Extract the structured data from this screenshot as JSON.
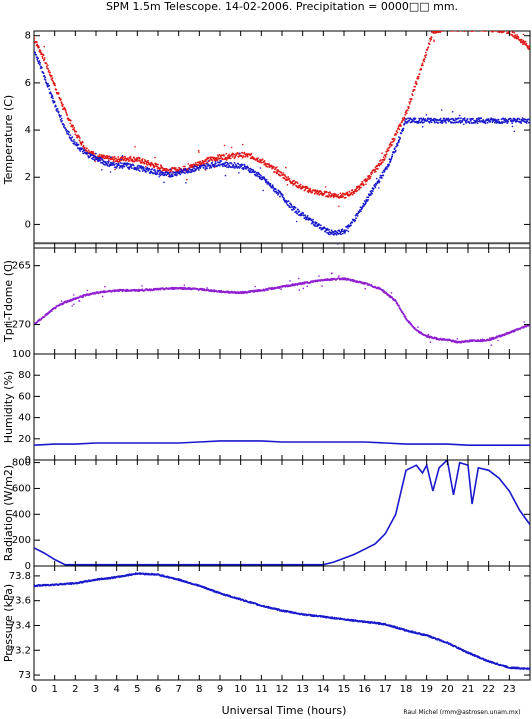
{
  "title": "SPM 1.5m Telescope. 14-02-2006. Precipitation = 0000□□ mm.",
  "xlabel": "Universal Time (hours)",
  "credit": "Raul Michel (rmm@astrosen.unam.mx)",
  "colors": {
    "blue": "#1a1acc",
    "red": "#e01818",
    "purple": "#9020d0",
    "gray": "#555555"
  },
  "chart_data": [
    {
      "type": "scatter",
      "ylabel": "Temperature (C)",
      "xlim": [
        0,
        24
      ],
      "ylim": [
        -1,
        8.2
      ],
      "yticks": [
        0,
        2,
        4,
        6,
        8
      ],
      "ytick_labels": [
        "0",
        "2",
        "4",
        "6",
        "8"
      ],
      "series": [
        {
          "color": "red",
          "points": [
            [
              0,
              7.9
            ],
            [
              0.5,
              7.0
            ],
            [
              1,
              5.9
            ],
            [
              1.5,
              4.8
            ],
            [
              2,
              3.9
            ],
            [
              2.5,
              3.2
            ],
            [
              3,
              2.9
            ],
            [
              3.5,
              2.8
            ],
            [
              4,
              2.75
            ],
            [
              4.5,
              2.8
            ],
            [
              5,
              2.75
            ],
            [
              5.5,
              2.6
            ],
            [
              6,
              2.45
            ],
            [
              6.5,
              2.3
            ],
            [
              7,
              2.3
            ],
            [
              7.5,
              2.4
            ],
            [
              8,
              2.6
            ],
            [
              8.5,
              2.75
            ],
            [
              9,
              2.85
            ],
            [
              9.5,
              2.9
            ],
            [
              10,
              2.95
            ],
            [
              10.5,
              2.9
            ],
            [
              11,
              2.7
            ],
            [
              11.5,
              2.4
            ],
            [
              12,
              2.1
            ],
            [
              12.5,
              1.8
            ],
            [
              13,
              1.55
            ],
            [
              13.5,
              1.4
            ],
            [
              14,
              1.3
            ],
            [
              14.5,
              1.25
            ],
            [
              15,
              1.2
            ],
            [
              15.5,
              1.4
            ],
            [
              16,
              1.8
            ],
            [
              16.5,
              2.3
            ],
            [
              17,
              2.9
            ],
            [
              17.5,
              3.8
            ],
            [
              18,
              4.7
            ],
            [
              18.5,
              6.0
            ],
            [
              19,
              7.3
            ],
            [
              19.3,
              8.2
            ],
            [
              20,
              8.3
            ],
            [
              21,
              8.3
            ],
            [
              22,
              8.3
            ],
            [
              23,
              8.2
            ],
            [
              24,
              7.5
            ]
          ]
        },
        {
          "color": "blue",
          "points": [
            [
              0,
              7.4
            ],
            [
              0.5,
              6.3
            ],
            [
              1,
              5.1
            ],
            [
              1.5,
              4.1
            ],
            [
              2,
              3.4
            ],
            [
              2.5,
              3.0
            ],
            [
              3,
              2.8
            ],
            [
              3.5,
              2.6
            ],
            [
              4,
              2.5
            ],
            [
              4.5,
              2.5
            ],
            [
              5,
              2.4
            ],
            [
              5.5,
              2.3
            ],
            [
              6,
              2.2
            ],
            [
              6.5,
              2.1
            ],
            [
              7,
              2.2
            ],
            [
              7.5,
              2.3
            ],
            [
              8,
              2.4
            ],
            [
              8.5,
              2.5
            ],
            [
              9,
              2.6
            ],
            [
              9.5,
              2.5
            ],
            [
              10,
              2.5
            ],
            [
              10.5,
              2.3
            ],
            [
              11,
              2.0
            ],
            [
              11.5,
              1.6
            ],
            [
              12,
              1.2
            ],
            [
              12.5,
              0.7
            ],
            [
              13,
              0.4
            ],
            [
              13.5,
              0.1
            ],
            [
              14,
              -0.2
            ],
            [
              14.5,
              -0.4
            ],
            [
              15,
              -0.3
            ],
            [
              15.5,
              0.2
            ],
            [
              16,
              0.9
            ],
            [
              16.5,
              1.6
            ],
            [
              17,
              2.3
            ],
            [
              17.5,
              3.2
            ],
            [
              18,
              4.4
            ],
            [
              19,
              4.4
            ],
            [
              20,
              4.4
            ],
            [
              21,
              4.4
            ],
            [
              22,
              4.4
            ],
            [
              23,
              4.4
            ],
            [
              24,
              4.4
            ]
          ]
        },
        {
          "color": "gray",
          "points": [
            [
              0,
              -0.8
            ],
            [
              24,
              -0.8
            ]
          ]
        }
      ]
    },
    {
      "type": "scatter",
      "ylabel": "Tpri-Tdome (C)",
      "xlim": [
        0,
        24
      ],
      "ylim": [
        -272.5,
        -263.5
      ],
      "yticks": [
        -270,
        -265
      ],
      "ytick_labels": [
        "−270",
        "−265"
      ],
      "series": [
        {
          "color": "purple",
          "points": [
            [
              0,
              -270.0
            ],
            [
              0.5,
              -269.3
            ],
            [
              1,
              -268.6
            ],
            [
              1.5,
              -268.1
            ],
            [
              2,
              -267.8
            ],
            [
              2.5,
              -267.5
            ],
            [
              3,
              -267.3
            ],
            [
              3.5,
              -267.2
            ],
            [
              4,
              -267.1
            ],
            [
              5,
              -267.1
            ],
            [
              6,
              -267.0
            ],
            [
              7,
              -266.9
            ],
            [
              8,
              -267.0
            ],
            [
              9,
              -267.2
            ],
            [
              10,
              -267.3
            ],
            [
              11,
              -267.1
            ],
            [
              12,
              -266.8
            ],
            [
              13,
              -266.5
            ],
            [
              14,
              -266.2
            ],
            [
              15,
              -266.1
            ],
            [
              16,
              -266.5
            ],
            [
              16.8,
              -267.0
            ],
            [
              17.5,
              -268.0
            ],
            [
              18,
              -269.5
            ],
            [
              18.5,
              -270.5
            ],
            [
              19,
              -271.0
            ],
            [
              19.5,
              -271.2
            ],
            [
              20,
              -271.3
            ],
            [
              20.5,
              -271.5
            ],
            [
              21,
              -271.4
            ],
            [
              22,
              -271.3
            ],
            [
              23,
              -270.7
            ],
            [
              24,
              -270.0
            ]
          ]
        }
      ]
    },
    {
      "type": "line",
      "ylabel": "Humidity (%)",
      "xlim": [
        0,
        24
      ],
      "ylim": [
        0,
        100
      ],
      "yticks": [
        0,
        20,
        40,
        60,
        80,
        100
      ],
      "ytick_labels": [
        "0",
        "20",
        "40",
        "60",
        "80",
        "100"
      ],
      "series": [
        {
          "color": "blue",
          "points": [
            [
              0,
              14
            ],
            [
              1,
              15
            ],
            [
              2,
              15
            ],
            [
              3,
              16
            ],
            [
              4,
              16
            ],
            [
              5,
              16
            ],
            [
              6,
              16
            ],
            [
              7,
              16
            ],
            [
              8,
              17
            ],
            [
              9,
              18
            ],
            [
              10,
              18
            ],
            [
              11,
              18
            ],
            [
              12,
              17
            ],
            [
              13,
              17
            ],
            [
              14,
              17
            ],
            [
              15,
              17
            ],
            [
              16,
              17
            ],
            [
              17,
              16
            ],
            [
              18,
              15
            ],
            [
              19,
              15
            ],
            [
              20,
              15
            ],
            [
              21,
              14
            ],
            [
              22,
              14
            ],
            [
              23,
              14
            ],
            [
              24,
              14
            ]
          ]
        }
      ]
    },
    {
      "type": "line",
      "ylabel": "Radiation (W/m2)",
      "xlim": [
        0,
        24
      ],
      "ylim": [
        0,
        820
      ],
      "yticks": [
        0,
        200,
        400,
        600,
        800
      ],
      "ytick_labels": [
        "0",
        "200",
        "400",
        "600",
        "800"
      ],
      "series": [
        {
          "color": "blue",
          "points": [
            [
              0,
              140
            ],
            [
              0.5,
              100
            ],
            [
              1,
              50
            ],
            [
              1.5,
              10
            ],
            [
              2,
              10
            ],
            [
              4,
              10
            ],
            [
              6,
              10
            ],
            [
              8,
              10
            ],
            [
              10,
              10
            ],
            [
              12,
              10
            ],
            [
              14,
              10
            ],
            [
              14.5,
              30
            ],
            [
              15,
              60
            ],
            [
              15.5,
              90
            ],
            [
              16,
              130
            ],
            [
              16.5,
              170
            ],
            [
              17,
              250
            ],
            [
              17.5,
              400
            ],
            [
              18,
              740
            ],
            [
              18.5,
              780
            ],
            [
              18.8,
              720
            ],
            [
              19,
              780
            ],
            [
              19.3,
              580
            ],
            [
              19.6,
              760
            ],
            [
              20,
              820
            ],
            [
              20.3,
              550
            ],
            [
              20.6,
              800
            ],
            [
              21,
              780
            ],
            [
              21.2,
              480
            ],
            [
              21.5,
              760
            ],
            [
              22,
              740
            ],
            [
              22.5,
              680
            ],
            [
              23,
              580
            ],
            [
              23.5,
              430
            ],
            [
              24,
              320
            ]
          ]
        }
      ]
    },
    {
      "type": "scatter",
      "ylabel": "Pressure (kPa)",
      "xlim": [
        0,
        24
      ],
      "ylim": [
        72.96,
        73.88
      ],
      "yticks": [
        73,
        73.2,
        73.4,
        73.6,
        73.8
      ],
      "ytick_labels": [
        "73",
        "73.2",
        "73.4",
        "73.6",
        "73.8"
      ],
      "series": [
        {
          "color": "blue",
          "points": [
            [
              0,
              73.72
            ],
            [
              1,
              73.73
            ],
            [
              2,
              73.74
            ],
            [
              3,
              73.77
            ],
            [
              4,
              73.79
            ],
            [
              5,
              73.82
            ],
            [
              6,
              73.81
            ],
            [
              7,
              73.77
            ],
            [
              8,
              73.72
            ],
            [
              9,
              73.66
            ],
            [
              10,
              73.61
            ],
            [
              11,
              73.56
            ],
            [
              12,
              73.52
            ],
            [
              13,
              73.49
            ],
            [
              14,
              73.47
            ],
            [
              15,
              73.45
            ],
            [
              16,
              73.43
            ],
            [
              17,
              73.41
            ],
            [
              18,
              73.36
            ],
            [
              19,
              73.32
            ],
            [
              20,
              73.26
            ],
            [
              21,
              73.18
            ],
            [
              22,
              73.11
            ],
            [
              23,
              73.06
            ],
            [
              24,
              73.05
            ]
          ]
        }
      ]
    }
  ]
}
